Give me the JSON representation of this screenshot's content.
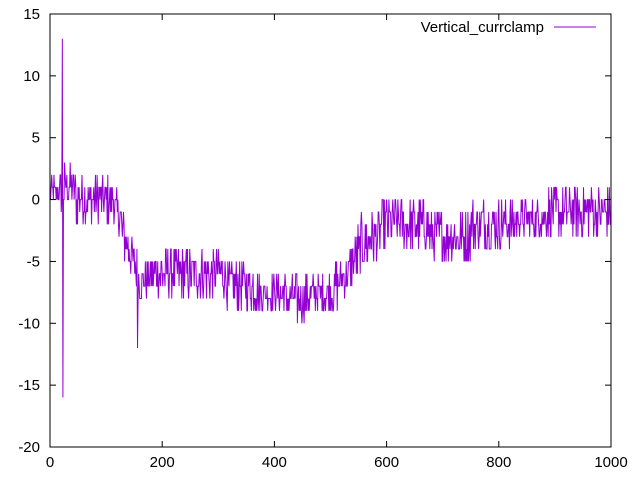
{
  "chart_data": {
    "type": "line",
    "title": "",
    "xlabel": "",
    "ylabel": "",
    "xlim": [
      0,
      1000
    ],
    "ylim": [
      -20,
      15
    ],
    "xticks": [
      0,
      200,
      400,
      600,
      800,
      1000
    ],
    "yticks": [
      -20,
      -15,
      -10,
      -5,
      0,
      5,
      10,
      15
    ],
    "grid": false,
    "legend_position": "top-right",
    "series": [
      {
        "name": "Vertical_currclamp",
        "color": "#9400d3",
        "noisy": true,
        "spikes": [
          {
            "x": 22,
            "y": 13
          },
          {
            "x": 23,
            "y": -16
          },
          {
            "x": 156,
            "y": -12
          }
        ],
        "envelope": [
          {
            "x": 0,
            "low": -1,
            "high": 2
          },
          {
            "x": 20,
            "low": -1,
            "high": 2
          },
          {
            "x": 30,
            "low": -1,
            "high": 3
          },
          {
            "x": 60,
            "low": -2,
            "high": 2
          },
          {
            "x": 110,
            "low": -2,
            "high": 2
          },
          {
            "x": 125,
            "low": -3,
            "high": 0
          },
          {
            "x": 135,
            "low": -5,
            "high": -2
          },
          {
            "x": 150,
            "low": -7,
            "high": -3
          },
          {
            "x": 160,
            "low": -8,
            "high": -5
          },
          {
            "x": 200,
            "low": -8,
            "high": -4
          },
          {
            "x": 250,
            "low": -8,
            "high": -4
          },
          {
            "x": 300,
            "low": -8,
            "high": -4
          },
          {
            "x": 330,
            "low": -9,
            "high": -5
          },
          {
            "x": 400,
            "low": -9,
            "high": -6
          },
          {
            "x": 440,
            "low": -10,
            "high": -6
          },
          {
            "x": 500,
            "low": -9,
            "high": -6
          },
          {
            "x": 530,
            "low": -8,
            "high": -4
          },
          {
            "x": 560,
            "low": -6,
            "high": -1
          },
          {
            "x": 580,
            "low": -5,
            "high": -1
          },
          {
            "x": 600,
            "low": -4,
            "high": 0
          },
          {
            "x": 650,
            "low": -4,
            "high": 0
          },
          {
            "x": 700,
            "low": -5,
            "high": -1
          },
          {
            "x": 800,
            "low": -4,
            "high": 0
          },
          {
            "x": 870,
            "low": -3,
            "high": 0
          },
          {
            "x": 900,
            "low": -3,
            "high": 1
          },
          {
            "x": 1000,
            "low": -3,
            "high": 1
          }
        ]
      }
    ]
  }
}
